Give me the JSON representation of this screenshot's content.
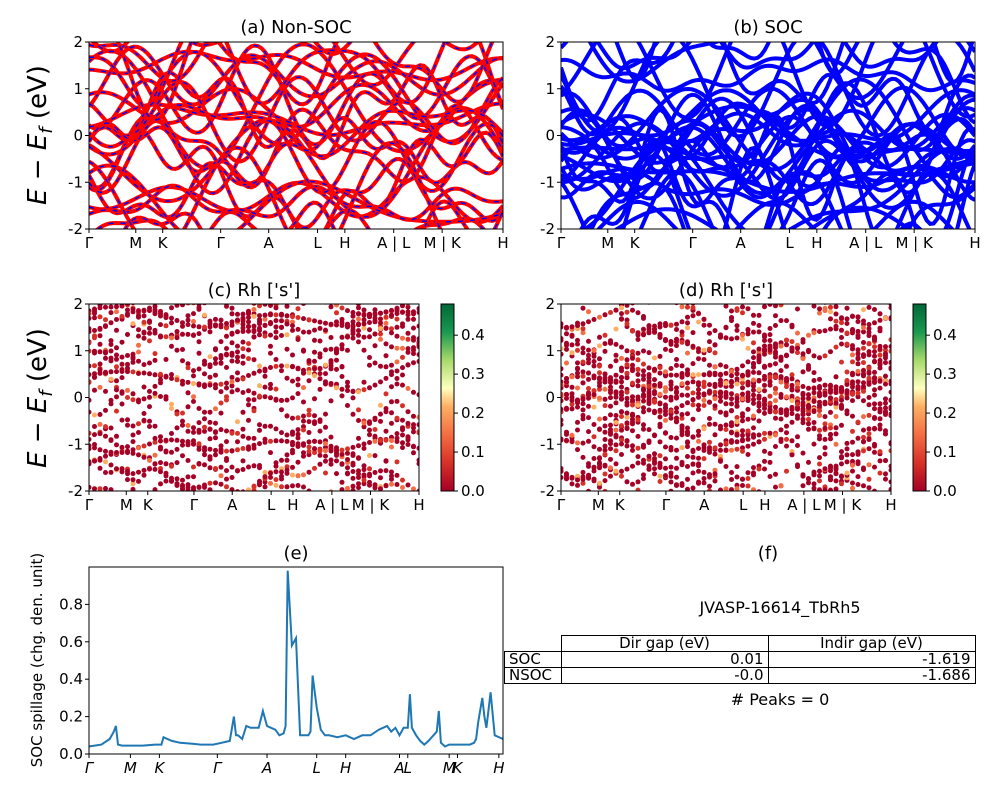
{
  "colors": {
    "nonsoc_line": "#ff0000",
    "nonsoc_dash": "#0000ff",
    "soc_line": "#0000ff",
    "spillage_line": "#1f77b4"
  },
  "kpath_labels": [
    "Γ",
    "M",
    "K",
    "Γ",
    "A",
    "L",
    "H",
    "A | L",
    "M | K",
    "H"
  ],
  "kpath_labels_small": [
    "Γ",
    "M",
    "K",
    "Γ",
    "A",
    "L",
    "H",
    "A | L",
    "M | K",
    "H"
  ],
  "spillage_klabels": [
    "Γ",
    "M",
    "K",
    "Γ",
    "A",
    "L",
    "H",
    "A",
    "L",
    "M",
    "K",
    "H"
  ],
  "ylabel_band": "E − E_f (eV)",
  "panels": {
    "a": {
      "title": "(a) Non-SOC"
    },
    "b": {
      "title": "(b) SOC"
    },
    "c": {
      "title": "(c)  Rh ['s']"
    },
    "d": {
      "title": "(d) Rh ['s']"
    },
    "e": {
      "title": "(e)",
      "ylabel": "SOC spillage (chg. den. unit)"
    },
    "f": {
      "title": "(f)"
    }
  },
  "info": {
    "name": "JVASP-16614_TbRh5",
    "headers": [
      "Dir gap (eV)",
      "Indir gap (eV)"
    ],
    "rows": [
      {
        "label": "SOC",
        "dir": "0.01",
        "indir": "-1.619"
      },
      {
        "label": "NSOC",
        "dir": "-0.0",
        "indir": "-1.686"
      }
    ],
    "peaks": "# Peaks = 0"
  },
  "chart_data": [
    {
      "id": "a",
      "type": "line",
      "title": "(a) Non-SOC",
      "ylim": [
        -2,
        2
      ],
      "yticks": [
        -2,
        -1,
        0,
        1,
        2
      ],
      "kpath_positions": [
        0,
        0.113,
        0.178,
        0.318,
        0.434,
        0.552,
        0.618,
        0.736,
        0.853,
        1.0
      ],
      "note": "band structure, red solid with blue dashed overlay"
    },
    {
      "id": "b",
      "type": "line",
      "title": "(b) SOC",
      "ylim": [
        -2,
        2
      ],
      "yticks": [
        -2,
        -1,
        0,
        1,
        2
      ],
      "kpath_positions": [
        0,
        0.113,
        0.178,
        0.318,
        0.434,
        0.552,
        0.618,
        0.736,
        0.853,
        1.0
      ]
    },
    {
      "id": "c",
      "type": "scatter",
      "title": "(c)  Rh ['s']",
      "ylim": [
        -2,
        2
      ],
      "yticks": [
        -2,
        -1,
        0,
        1,
        2
      ],
      "colorbar": {
        "range": [
          0.0,
          0.48
        ],
        "ticks": [
          0.0,
          0.1,
          0.2,
          0.3,
          0.4
        ],
        "cmap": "RdYlGn"
      }
    },
    {
      "id": "d",
      "type": "scatter",
      "title": "(d) Rh ['s']",
      "ylim": [
        -2,
        2
      ],
      "yticks": [
        -2,
        -1,
        0,
        1,
        2
      ],
      "colorbar": {
        "range": [
          0.0,
          0.48
        ],
        "ticks": [
          0.0,
          0.1,
          0.2,
          0.3,
          0.4
        ],
        "cmap": "RdYlGn"
      }
    },
    {
      "id": "e",
      "type": "line",
      "title": "(e)",
      "ylabel": "SOC spillage (chg. den. unit)",
      "ylim": [
        0,
        1.0
      ],
      "yticks": [
        0.0,
        0.2,
        0.4,
        0.6,
        0.8
      ],
      "xlim": [
        0,
        1
      ],
      "series": [
        {
          "x": [
            0,
            0.03,
            0.05,
            0.06,
            0.065,
            0.07,
            0.08,
            0.1,
            0.13,
            0.16,
            0.175,
            0.18,
            0.2,
            0.22,
            0.25,
            0.27,
            0.3,
            0.32,
            0.34,
            0.35,
            0.355,
            0.36,
            0.37,
            0.38,
            0.39,
            0.4,
            0.41,
            0.42,
            0.43,
            0.45,
            0.46,
            0.47,
            0.475,
            0.48,
            0.49,
            0.5,
            0.505,
            0.51,
            0.52,
            0.53,
            0.535,
            0.54,
            0.55,
            0.56,
            0.57,
            0.58,
            0.6,
            0.62,
            0.64,
            0.66,
            0.68,
            0.7,
            0.72,
            0.73,
            0.74,
            0.75,
            0.76,
            0.77,
            0.775,
            0.78,
            0.79,
            0.8,
            0.81,
            0.82,
            0.84,
            0.845,
            0.85,
            0.86,
            0.87,
            0.9,
            0.92,
            0.93,
            0.935,
            0.94,
            0.95,
            0.955,
            0.96,
            0.97,
            0.98,
            1.0
          ],
          "y": [
            0.04,
            0.05,
            0.08,
            0.12,
            0.15,
            0.05,
            0.045,
            0.045,
            0.045,
            0.05,
            0.05,
            0.09,
            0.07,
            0.06,
            0.055,
            0.05,
            0.05,
            0.06,
            0.07,
            0.2,
            0.1,
            0.1,
            0.08,
            0.15,
            0.14,
            0.14,
            0.14,
            0.23,
            0.15,
            0.13,
            0.1,
            0.11,
            0.15,
            0.98,
            0.58,
            0.62,
            0.35,
            0.1,
            0.1,
            0.1,
            0.12,
            0.42,
            0.25,
            0.13,
            0.1,
            0.1,
            0.09,
            0.1,
            0.08,
            0.1,
            0.1,
            0.13,
            0.15,
            0.12,
            0.14,
            0.1,
            0.14,
            0.14,
            0.32,
            0.14,
            0.1,
            0.07,
            0.05,
            0.07,
            0.12,
            0.23,
            0.06,
            0.04,
            0.05,
            0.05,
            0.05,
            0.06,
            0.08,
            0.17,
            0.3,
            0.2,
            0.14,
            0.33,
            0.1,
            0.08
          ]
        }
      ]
    }
  ]
}
